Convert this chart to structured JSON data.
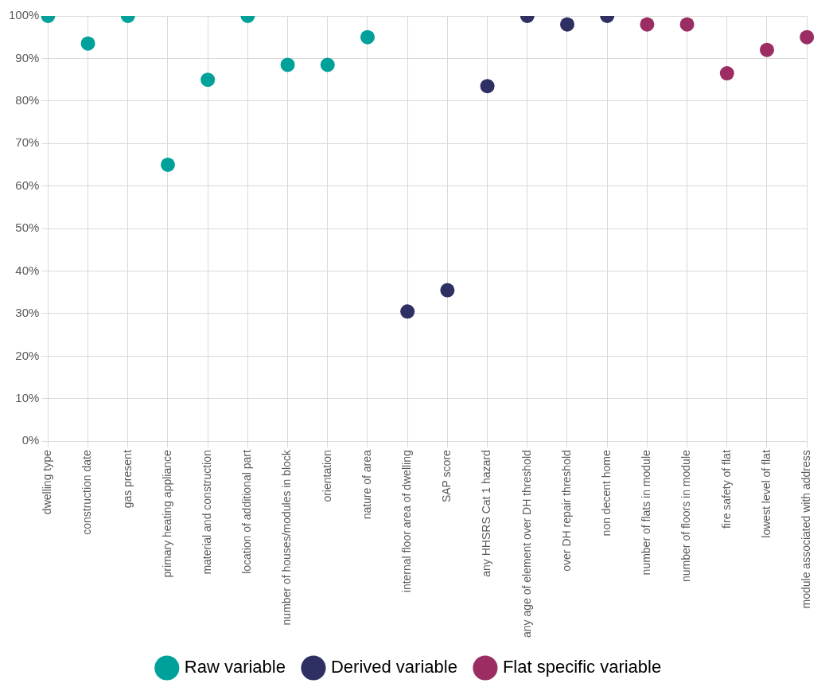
{
  "chart_data": {
    "type": "scatter",
    "categories": [
      "dwelling type",
      "construction date",
      "gas present",
      "primary heating appliance",
      "material and construction",
      "location of additional part",
      "number of houses/modules in block",
      "orientation",
      "nature of area",
      "internal floor area of dwelling",
      "SAP score",
      "any HHSRS Cat 1 hazard",
      "any age of element over DH threshold",
      "over DH repair threshold",
      "non decent home",
      "number of flats in module",
      "number of floors in module",
      "fire safety of flat",
      "lowest level of flat",
      "module associated with address"
    ],
    "series": [
      {
        "name": "Raw variable",
        "color": "#00a19a",
        "values": [
          100,
          93.5,
          100,
          65,
          85,
          100,
          88.5,
          88.5,
          95,
          null,
          null,
          null,
          null,
          null,
          null,
          null,
          null,
          null,
          null,
          null
        ]
      },
      {
        "name": "Derived variable",
        "color": "#2e2f62",
        "values": [
          null,
          null,
          null,
          null,
          null,
          null,
          null,
          null,
          null,
          30.5,
          35.5,
          83.5,
          100,
          98,
          100,
          null,
          null,
          null,
          null,
          null
        ]
      },
      {
        "name": "Flat specific variable",
        "color": "#9b2d62",
        "values": [
          null,
          null,
          null,
          null,
          null,
          null,
          null,
          null,
          null,
          null,
          null,
          null,
          null,
          null,
          null,
          98,
          98,
          86.5,
          92,
          95
        ]
      }
    ],
    "ylim": [
      0,
      100
    ],
    "yticks": [
      {
        "value": 0,
        "label": "0%"
      },
      {
        "value": 10,
        "label": "10%"
      },
      {
        "value": 20,
        "label": "20%"
      },
      {
        "value": 30,
        "label": "30%"
      },
      {
        "value": 40,
        "label": "40%"
      },
      {
        "value": 50,
        "label": "50%"
      },
      {
        "value": 60,
        "label": "60%"
      },
      {
        "value": 70,
        "label": "70%"
      },
      {
        "value": 80,
        "label": "80%"
      },
      {
        "value": 90,
        "label": "90%"
      },
      {
        "value": 100,
        "label": "100%"
      }
    ],
    "grid": true,
    "legend": "bottom",
    "marker": "circle"
  }
}
